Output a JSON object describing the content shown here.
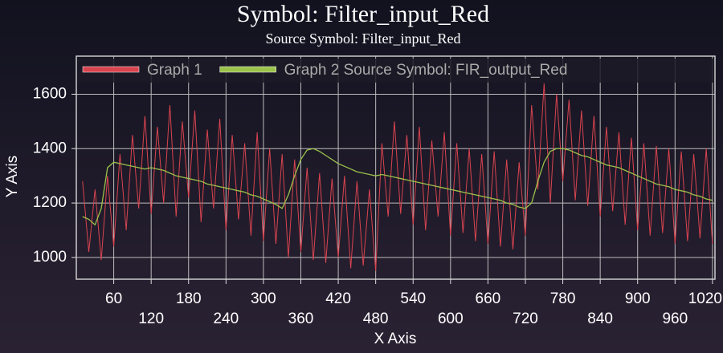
{
  "chart_data": {
    "type": "line",
    "title": "Symbol: Filter_input_Red",
    "subtitle": "Source Symbol: Filter_input_Red",
    "x_label": "X Axis",
    "y_label": "Y Axis",
    "x": [
      10,
      20,
      30,
      40,
      50,
      60,
      70,
      80,
      90,
      100,
      110,
      120,
      130,
      140,
      150,
      160,
      170,
      180,
      190,
      200,
      210,
      220,
      230,
      240,
      250,
      260,
      270,
      280,
      290,
      300,
      310,
      320,
      330,
      340,
      350,
      360,
      370,
      380,
      390,
      400,
      410,
      420,
      430,
      440,
      450,
      460,
      470,
      480,
      490,
      500,
      510,
      520,
      530,
      540,
      550,
      560,
      570,
      580,
      590,
      600,
      610,
      620,
      630,
      640,
      650,
      660,
      670,
      680,
      690,
      700,
      710,
      720,
      730,
      740,
      750,
      760,
      770,
      780,
      790,
      800,
      810,
      820,
      830,
      840,
      850,
      860,
      870,
      880,
      890,
      900,
      910,
      920,
      930,
      940,
      950,
      960,
      970,
      980,
      990,
      1000,
      1010,
      1020
    ],
    "series": [
      {
        "name": "Graph 1",
        "color": "#d9444f",
        "values": [
          1280,
          1020,
          1250,
          990,
          1300,
          1040,
          1380,
          1100,
          1450,
          1180,
          1520,
          1160,
          1480,
          1200,
          1560,
          1150,
          1500,
          1220,
          1540,
          1130,
          1470,
          1180,
          1510,
          1100,
          1450,
          1140,
          1420,
          1080,
          1460,
          1060,
          1400,
          1050,
          1380,
          1000,
          1360,
          1020,
          1330,
          990,
          1310,
          980,
          1290,
          1000,
          1300,
          960,
          1280,
          970,
          1250,
          950,
          1420,
          1150,
          1500,
          1160,
          1450,
          1120,
          1480,
          1100,
          1430,
          1150,
          1460,
          1080,
          1420,
          1090,
          1400,
          1060,
          1380,
          1050,
          1390,
          1040,
          1360,
          1030,
          1350,
          1080,
          1560,
          1250,
          1640,
          1200,
          1600,
          1280,
          1580,
          1210,
          1540,
          1190,
          1520,
          1150,
          1480,
          1170,
          1460,
          1120,
          1440,
          1100,
          1420,
          1080,
          1410,
          1090,
          1400,
          1050,
          1390,
          1060,
          1380,
          1070,
          1400,
          1050
        ]
      },
      {
        "name": "Graph 2 Source Symbol: FIR_output_Red",
        "color": "#9bc24a",
        "values": [
          1150,
          1140,
          1120,
          1180,
          1330,
          1350,
          1345,
          1340,
          1335,
          1330,
          1325,
          1330,
          1325,
          1320,
          1310,
          1300,
          1295,
          1290,
          1285,
          1280,
          1270,
          1265,
          1260,
          1255,
          1250,
          1245,
          1240,
          1230,
          1225,
          1215,
          1205,
          1195,
          1180,
          1230,
          1300,
          1360,
          1395,
          1400,
          1390,
          1375,
          1360,
          1345,
          1335,
          1325,
          1315,
          1310,
          1305,
          1300,
          1305,
          1300,
          1295,
          1290,
          1285,
          1280,
          1275,
          1270,
          1265,
          1260,
          1255,
          1250,
          1245,
          1240,
          1235,
          1230,
          1225,
          1220,
          1215,
          1210,
          1200,
          1195,
          1185,
          1180,
          1200,
          1280,
          1350,
          1390,
          1400,
          1400,
          1395,
          1385,
          1375,
          1370,
          1360,
          1350,
          1340,
          1335,
          1330,
          1320,
          1310,
          1300,
          1290,
          1280,
          1270,
          1265,
          1260,
          1250,
          1245,
          1240,
          1230,
          1225,
          1215,
          1210
        ]
      }
    ],
    "xlim": [
      0,
      1024
    ],
    "ylim": [
      920,
      1740
    ],
    "xticks": [
      60,
      120,
      180,
      240,
      300,
      360,
      420,
      480,
      540,
      600,
      660,
      720,
      780,
      840,
      900,
      960,
      1020
    ],
    "yticks": [
      1000,
      1200,
      1400,
      1600
    ],
    "grid": true
  }
}
